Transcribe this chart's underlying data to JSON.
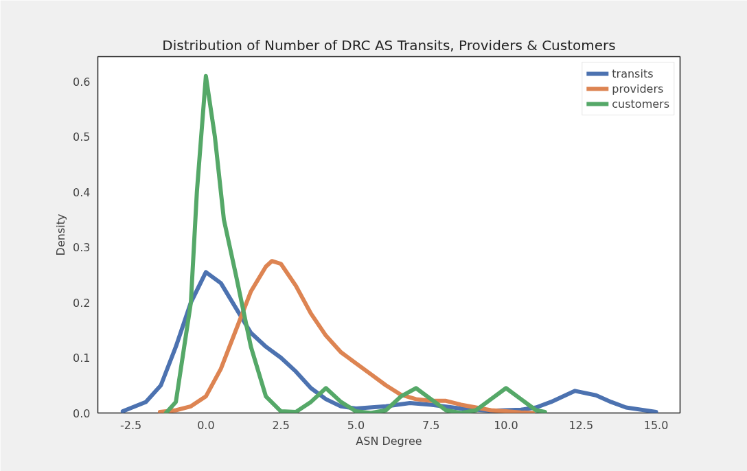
{
  "chart_data": {
    "type": "line",
    "title": "Distribution of Number of DRC AS Transits, Providers & Customers",
    "xlabel": "ASN Degree",
    "ylabel": "Density",
    "xlim": [
      -3.6,
      15.8
    ],
    "ylim": [
      0,
      0.645
    ],
    "xticks": [
      {
        "value": -2.5,
        "label": "-2.5"
      },
      {
        "value": 0,
        "label": "0.0"
      },
      {
        "value": 2.5,
        "label": "2.5"
      },
      {
        "value": 5,
        "label": "5.0"
      },
      {
        "value": 7.5,
        "label": "7.5"
      },
      {
        "value": 10,
        "label": "10.0"
      },
      {
        "value": 12.5,
        "label": "12.5"
      },
      {
        "value": 15,
        "label": "15.0"
      }
    ],
    "yticks": [
      {
        "value": 0,
        "label": "0.0"
      },
      {
        "value": 0.1,
        "label": "0.1"
      },
      {
        "value": 0.2,
        "label": "0.2"
      },
      {
        "value": 0.3,
        "label": "0.3"
      },
      {
        "value": 0.4,
        "label": "0.4"
      },
      {
        "value": 0.5,
        "label": "0.5"
      },
      {
        "value": 0.6,
        "label": "0.6"
      }
    ],
    "grid": false,
    "legend": "top right",
    "marker": "none",
    "line_style": "solid",
    "series": [
      {
        "name": "transits",
        "color": "#4c72b0",
        "x": [
          -2.77,
          -2,
          -1.5,
          -1,
          -0.5,
          0,
          0.5,
          1,
          1.5,
          2,
          2.5,
          3,
          3.5,
          4,
          4.5,
          5,
          6,
          6.8,
          7.5,
          8.5,
          9.5,
          10.5,
          11,
          11.5,
          12.3,
          13,
          13.5,
          14,
          15
        ],
        "values": [
          0.003,
          0.02,
          0.05,
          0.12,
          0.2,
          0.255,
          0.235,
          0.19,
          0.145,
          0.12,
          0.1,
          0.075,
          0.045,
          0.025,
          0.012,
          0.008,
          0.012,
          0.018,
          0.015,
          0.008,
          0.004,
          0.006,
          0.01,
          0.02,
          0.04,
          0.032,
          0.02,
          0.01,
          0.002
        ]
      },
      {
        "name": "providers",
        "color": "#dd8452",
        "x": [
          -1.53,
          -1,
          -0.5,
          0,
          0.5,
          1,
          1.5,
          2,
          2.2,
          2.5,
          3,
          3.5,
          4,
          4.5,
          5,
          5.5,
          6,
          6.5,
          7,
          7.5,
          8,
          8.5,
          9,
          9.5,
          10,
          10.5,
          10.9
        ],
        "values": [
          0.002,
          0.005,
          0.012,
          0.03,
          0.08,
          0.15,
          0.22,
          0.265,
          0.275,
          0.27,
          0.23,
          0.18,
          0.14,
          0.11,
          0.09,
          0.07,
          0.05,
          0.033,
          0.025,
          0.022,
          0.022,
          0.015,
          0.01,
          0.005,
          0.003,
          0.001,
          0.0
        ]
      },
      {
        "name": "customers",
        "color": "#55a868",
        "x": [
          -1.33,
          -1,
          -0.5,
          -0.3,
          0,
          0.3,
          0.6,
          1,
          1.5,
          2,
          2.5,
          3,
          3.5,
          4,
          4.5,
          5,
          5.5,
          6,
          6.5,
          7,
          7.5,
          8,
          8.5,
          9,
          9.5,
          10,
          10.5,
          11,
          11.3
        ],
        "values": [
          0.0,
          0.02,
          0.2,
          0.4,
          0.61,
          0.5,
          0.35,
          0.25,
          0.12,
          0.03,
          0.003,
          0.002,
          0.02,
          0.045,
          0.02,
          0.003,
          0.0,
          0.005,
          0.03,
          0.045,
          0.025,
          0.005,
          0.0,
          0.005,
          0.025,
          0.045,
          0.025,
          0.005,
          0.002
        ]
      }
    ]
  }
}
